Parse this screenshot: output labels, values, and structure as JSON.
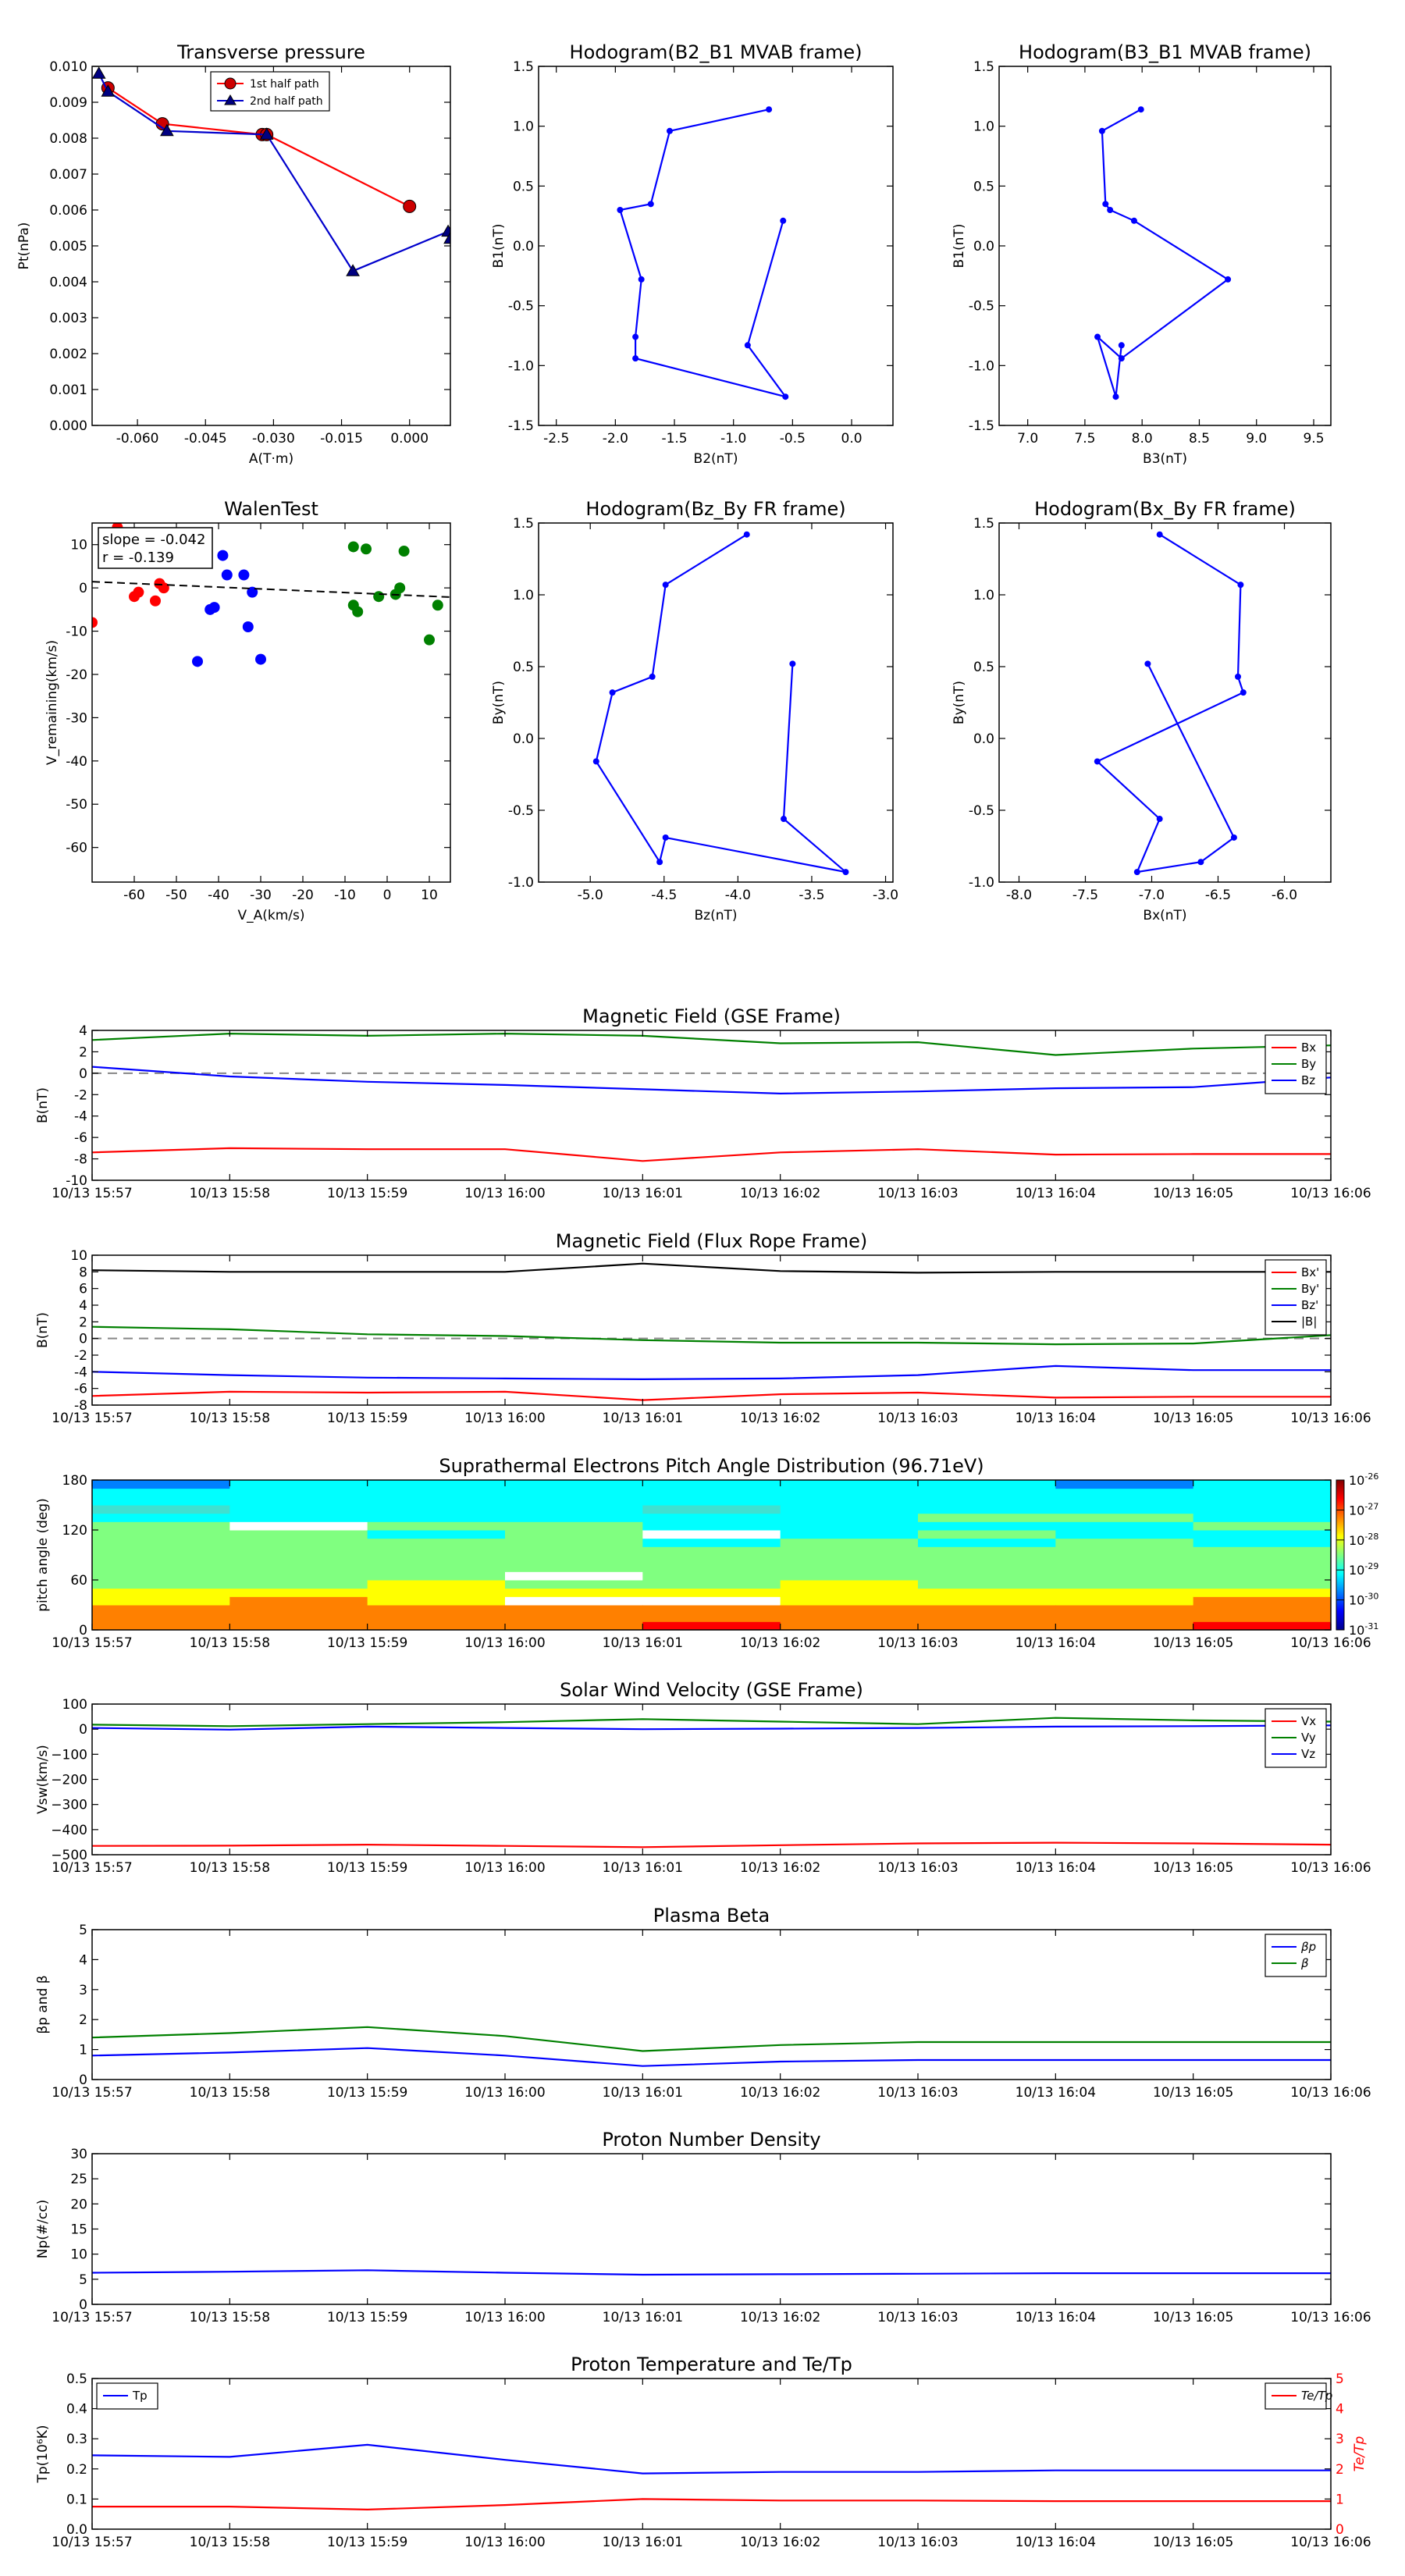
{
  "time_axis": [
    "10/13 15:57",
    "10/13 15:58",
    "10/13 15:59",
    "10/13 16:00",
    "10/13 16:01",
    "10/13 16:02",
    "10/13 16:03",
    "10/13 16:04",
    "10/13 16:05",
    "10/13 16:06"
  ],
  "chart_data": [
    {
      "id": "transverse_pressure",
      "type": "line",
      "title": "Transverse pressure",
      "xlabel": "A(T·m)",
      "ylabel": "Pt(nPa)",
      "xlim": [
        -0.07,
        0.009
      ],
      "ylim": [
        0,
        0.01
      ],
      "xticks": [
        "-0.060",
        "-0.045",
        "-0.030",
        "-0.015",
        "0.000"
      ],
      "xtick_values": [
        -0.06,
        -0.045,
        -0.03,
        -0.015,
        0.0
      ],
      "yticks": [
        "0.000",
        "0.001",
        "0.002",
        "0.003",
        "0.004",
        "0.005",
        "0.006",
        "0.007",
        "0.008",
        "0.009",
        "0.010"
      ],
      "ytick_values": [
        0,
        0.001,
        0.002,
        0.003,
        0.004,
        0.005,
        0.006,
        0.007,
        0.008,
        0.009,
        0.01
      ],
      "legend": {
        "position": "top-center"
      },
      "series": [
        {
          "name": "1st half path",
          "color": "#ff0000",
          "marker": "circle",
          "markerColor": "#cc0000",
          "x": [
            -0.0665,
            -0.0545,
            -0.0325,
            -0.0315,
            0.0
          ],
          "y": [
            0.0094,
            0.0084,
            0.0081,
            0.0081,
            0.0061
          ]
        },
        {
          "name": "2nd half path",
          "color": "#0000cc",
          "marker": "triangle",
          "markerColor": "#000080",
          "x": [
            -0.0685,
            -0.0665,
            -0.0535,
            -0.0315,
            -0.0125,
            0.0085,
            0.009
          ],
          "y": [
            0.0098,
            0.0093,
            0.0082,
            0.0081,
            0.0043,
            0.0054,
            0.0052
          ]
        }
      ]
    },
    {
      "id": "hodo_b2b1",
      "type": "line",
      "title": "Hodogram(B2_B1 MVAB frame)",
      "xlabel": "B2(nT)",
      "ylabel": "B1(nT)",
      "xlim": [
        -2.65,
        0.35
      ],
      "ylim": [
        -1.5,
        1.5
      ],
      "xticks": [
        "-2.5",
        "-2.0",
        "-1.5",
        "-1.0",
        "-0.5",
        "0.0"
      ],
      "xtick_values": [
        -2.5,
        -2.0,
        -1.5,
        -1.0,
        -0.5,
        0.0
      ],
      "yticks": [
        "-1.5",
        "-1.0",
        "-0.5",
        "0.0",
        "0.5",
        "1.0",
        "1.5"
      ],
      "ytick_values": [
        -1.5,
        -1.0,
        -0.5,
        0.0,
        0.5,
        1.0,
        1.5
      ],
      "series": [
        {
          "color": "#0000ff",
          "marker": "dot",
          "x": [
            -0.7,
            -1.54,
            -1.7,
            -1.96,
            -1.78,
            -1.83,
            -1.83,
            -0.56,
            -0.88,
            -0.58
          ],
          "y": [
            1.14,
            0.96,
            0.35,
            0.3,
            -0.28,
            -0.76,
            -0.94,
            -1.26,
            -0.83,
            0.21
          ]
        }
      ]
    },
    {
      "id": "hodo_b3b1",
      "type": "line",
      "title": "Hodogram(B3_B1 MVAB frame)",
      "xlabel": "B3(nT)",
      "ylabel": "B1(nT)",
      "xlim": [
        6.75,
        9.65
      ],
      "ylim": [
        -1.5,
        1.5
      ],
      "xticks": [
        "7.0",
        "7.5",
        "8.0",
        "8.5",
        "9.0",
        "9.5"
      ],
      "xtick_values": [
        7.0,
        7.5,
        8.0,
        8.5,
        9.0,
        9.5
      ],
      "yticks": [
        "-1.5",
        "-1.0",
        "-0.5",
        "0.0",
        "0.5",
        "1.0",
        "1.5"
      ],
      "ytick_values": [
        -1.5,
        -1.0,
        -0.5,
        0.0,
        0.5,
        1.0,
        1.5
      ],
      "series": [
        {
          "color": "#0000ff",
          "marker": "dot",
          "x": [
            7.99,
            7.65,
            7.68,
            7.72,
            7.93,
            8.75,
            7.82,
            7.61,
            7.77,
            7.82
          ],
          "y": [
            1.14,
            0.96,
            0.35,
            0.3,
            0.21,
            -0.28,
            -0.94,
            -0.76,
            -1.26,
            -0.83
          ]
        }
      ]
    },
    {
      "id": "walen",
      "type": "scatter",
      "title": "WalenTest",
      "xlabel": "V_A(km/s)",
      "ylabel": "V_remaining(km/s)",
      "xlim": [
        -70,
        15
      ],
      "ylim": [
        -68,
        15
      ],
      "xticks": [
        "-60",
        "-50",
        "-40",
        "-30",
        "-20",
        "-10",
        "0",
        "10"
      ],
      "xtick_values": [
        -60,
        -50,
        -40,
        -30,
        -20,
        -10,
        0,
        10
      ],
      "yticks": [
        "-60",
        "-50",
        "-40",
        "-30",
        "-20",
        "-10",
        "0",
        "10"
      ],
      "ytick_values": [
        -60,
        -50,
        -40,
        -30,
        -20,
        -10,
        0,
        10
      ],
      "annotation": [
        "slope = -0.042",
        "r = -0.139"
      ],
      "fit_line": {
        "slope": -0.042,
        "intercept": -1.5
      },
      "series": [
        {
          "color": "#ff0000",
          "x": [
            -70,
            -64,
            -60,
            -59,
            -55,
            -54,
            -53
          ],
          "y": [
            -8,
            14,
            -2,
            -1,
            -3,
            1,
            0
          ]
        },
        {
          "color": "#0000ff",
          "x": [
            -45,
            -42,
            -41,
            -39,
            -38,
            -34,
            -33,
            -32,
            -30
          ],
          "y": [
            -17,
            -5,
            -4.5,
            7.5,
            3,
            3,
            -9,
            -1,
            -16.5
          ]
        },
        {
          "color": "#008000",
          "x": [
            -8,
            -8,
            -7,
            -5,
            -2,
            2,
            3,
            4,
            10,
            12
          ],
          "y": [
            9.5,
            -4,
            -5.5,
            9,
            -2,
            -1.5,
            0,
            8.5,
            -12,
            -4
          ]
        }
      ]
    },
    {
      "id": "hodo_bzby",
      "type": "line",
      "title": "Hodogram(Bz_By FR frame)",
      "xlabel": "Bz(nT)",
      "ylabel": "By(nT)",
      "xlim": [
        -5.35,
        -2.95
      ],
      "ylim": [
        -1.0,
        1.5
      ],
      "xticks": [
        "-5.0",
        "-4.5",
        "-4.0",
        "-3.5",
        "-3.0"
      ],
      "xtick_values": [
        -5.0,
        -4.5,
        -4.0,
        -3.5,
        -3.0
      ],
      "yticks": [
        "-1.0",
        "-0.5",
        "0.0",
        "0.5",
        "1.0",
        "1.5"
      ],
      "ytick_values": [
        -1.0,
        -0.5,
        0.0,
        0.5,
        1.0,
        1.5
      ],
      "series": [
        {
          "color": "#0000ff",
          "marker": "dot",
          "x": [
            -3.94,
            -4.49,
            -4.58,
            -4.85,
            -4.96,
            -4.53,
            -4.49,
            -3.27,
            -3.69,
            -3.63
          ],
          "y": [
            1.42,
            1.07,
            0.43,
            0.32,
            -0.16,
            -0.86,
            -0.69,
            -0.93,
            -0.56,
            0.52
          ]
        }
      ]
    },
    {
      "id": "hodo_bxby",
      "type": "line",
      "title": "Hodogram(Bx_By FR frame)",
      "xlabel": "Bx(nT)",
      "ylabel": "By(nT)",
      "xlim": [
        -8.15,
        -5.65
      ],
      "ylim": [
        -1.0,
        1.5
      ],
      "xticks": [
        "-8.0",
        "-7.5",
        "-7.0",
        "-6.5",
        "-6.0"
      ],
      "xtick_values": [
        -8.0,
        -7.5,
        -7.0,
        -6.5,
        -6.0
      ],
      "yticks": [
        "-1.0",
        "-0.5",
        "0.0",
        "0.5",
        "1.0",
        "1.5"
      ],
      "ytick_values": [
        -1.0,
        -0.5,
        0.0,
        0.5,
        1.0,
        1.5
      ],
      "series": [
        {
          "color": "#0000ff",
          "marker": "dot",
          "x": [
            -6.94,
            -6.33,
            -6.35,
            -6.31,
            -7.41,
            -6.94,
            -7.11,
            -6.63,
            -6.38,
            -7.03
          ],
          "y": [
            1.42,
            1.07,
            0.43,
            0.32,
            -0.16,
            -0.56,
            -0.93,
            -0.86,
            -0.69,
            0.52
          ]
        }
      ]
    },
    {
      "id": "mag_gse",
      "type": "line",
      "title": "Magnetic Field (GSE Frame)",
      "ylabel": "B(nT)",
      "ylim": [
        -10,
        4
      ],
      "yticks": [
        "-10",
        "-8",
        "-6",
        "-4",
        "-2",
        "0",
        "2",
        "4"
      ],
      "ytick_values": [
        -10,
        -8,
        -6,
        -4,
        -2,
        0,
        2,
        4
      ],
      "zero_line": true,
      "legend": {
        "position": "top-right"
      },
      "series": [
        {
          "name": "Bx",
          "color": "#ff0000",
          "y": [
            -7.4,
            -7.0,
            -7.1,
            -7.1,
            -8.2,
            -7.4,
            -7.1,
            -7.6,
            -7.55,
            -7.55
          ]
        },
        {
          "name": "By",
          "color": "#008000",
          "y": [
            3.1,
            3.7,
            3.5,
            3.7,
            3.5,
            2.8,
            2.9,
            1.7,
            2.3,
            2.6
          ]
        },
        {
          "name": "Bz",
          "color": "#0000ff",
          "y": [
            0.6,
            -0.3,
            -0.8,
            -1.1,
            -1.5,
            -1.9,
            -1.7,
            -1.4,
            -1.3,
            -0.4
          ]
        }
      ]
    },
    {
      "id": "mag_fr",
      "type": "line",
      "title": "Magnetic Field (Flux Rope Frame)",
      "ylabel": "B(nT)",
      "ylim": [
        -8,
        10
      ],
      "yticks": [
        "-8",
        "-6",
        "-4",
        "-2",
        "0",
        "2",
        "4",
        "6",
        "8",
        "10"
      ],
      "ytick_values": [
        -8,
        -6,
        -4,
        -2,
        0,
        2,
        4,
        6,
        8,
        10
      ],
      "zero_line": true,
      "legend": {
        "position": "top-right"
      },
      "series": [
        {
          "name": "Bx'",
          "color": "#ff0000",
          "y": [
            -6.9,
            -6.4,
            -6.5,
            -6.4,
            -7.4,
            -6.7,
            -6.5,
            -7.1,
            -7.0,
            -7.0
          ]
        },
        {
          "name": "By'",
          "color": "#008000",
          "y": [
            1.4,
            1.1,
            0.5,
            0.3,
            -0.2,
            -0.5,
            -0.5,
            -0.7,
            -0.6,
            0.4
          ]
        },
        {
          "name": "Bz'",
          "color": "#0000ff",
          "y": [
            -4.0,
            -4.4,
            -4.7,
            -4.8,
            -4.9,
            -4.8,
            -4.4,
            -3.3,
            -3.8,
            -3.8
          ]
        },
        {
          "name": "|B|",
          "color": "#000000",
          "y": [
            8.2,
            8.0,
            8.0,
            8.0,
            9.0,
            8.1,
            7.9,
            8.0,
            8.0,
            8.0
          ]
        }
      ]
    },
    {
      "id": "pad",
      "type": "heatmap",
      "title": "Suprathermal Electrons Pitch Angle Distribution (96.71eV)",
      "ylabel": "pitch angle (deg)",
      "ylim": [
        0,
        180
      ],
      "yticks": [
        "0",
        "60",
        "120",
        "180"
      ],
      "ytick_values": [
        0,
        60,
        120,
        180
      ],
      "colorbar": {
        "labels": [
          "10",
          "10",
          "10",
          "10",
          "10",
          "10"
        ],
        "exponents": [
          "-26",
          "-27",
          "-28",
          "-29",
          "-30",
          "-31"
        ]
      }
    },
    {
      "id": "vsw",
      "type": "line",
      "title": "Solar Wind Velocity (GSE Frame)",
      "ylabel": "Vsw(km/s)",
      "ylim": [
        -500,
        100
      ],
      "yticks": [
        "−500",
        "−400",
        "−300",
        "−200",
        "−100",
        "0",
        "100"
      ],
      "ytick_values": [
        -500,
        -400,
        -300,
        -200,
        -100,
        0,
        100
      ],
      "legend": {
        "position": "top-right"
      },
      "series": [
        {
          "name": "Vx",
          "color": "#ff0000",
          "y": [
            -465,
            -464,
            -460,
            -465,
            -470,
            -462,
            -455,
            -452,
            -455,
            -460
          ]
        },
        {
          "name": "Vy",
          "color": "#008000",
          "y": [
            18,
            12,
            20,
            28,
            40,
            30,
            20,
            45,
            35,
            30
          ]
        },
        {
          "name": "Vz",
          "color": "#0000ff",
          "y": [
            5,
            -2,
            10,
            5,
            0,
            2,
            5,
            10,
            12,
            15
          ]
        }
      ]
    },
    {
      "id": "beta",
      "type": "line",
      "title": "Plasma Beta",
      "ylabel": "βp and β",
      "ylim": [
        0,
        5
      ],
      "yticks": [
        "0",
        "1",
        "2",
        "3",
        "4",
        "5"
      ],
      "ytick_values": [
        0,
        1,
        2,
        3,
        4,
        5
      ],
      "legend": {
        "position": "top-right"
      },
      "series": [
        {
          "name": "βp",
          "color": "#0000ff",
          "y": [
            0.8,
            0.9,
            1.05,
            0.8,
            0.45,
            0.6,
            0.65,
            0.65,
            0.65,
            0.65
          ]
        },
        {
          "name": "β",
          "color": "#008000",
          "y": [
            1.4,
            1.55,
            1.75,
            1.45,
            0.95,
            1.15,
            1.25,
            1.25,
            1.25,
            1.25
          ]
        }
      ]
    },
    {
      "id": "density",
      "type": "line",
      "title": "Proton Number Density",
      "ylabel": "Np(#/cc)",
      "ylim": [
        0,
        30
      ],
      "yticks": [
        "0",
        "5",
        "10",
        "15",
        "20",
        "25",
        "30"
      ],
      "ytick_values": [
        0,
        5,
        10,
        15,
        20,
        25,
        30
      ],
      "series": [
        {
          "color": "#0000ff",
          "y": [
            6.3,
            6.5,
            6.8,
            6.3,
            5.9,
            6.0,
            6.1,
            6.2,
            6.2,
            6.2
          ]
        }
      ]
    },
    {
      "id": "temp",
      "type": "line",
      "title": "Proton Temperature and Te/Tp",
      "ylabel": "Tp(10⁶K)",
      "ylabel_right": "Te/Tp",
      "ylim": [
        0,
        0.5
      ],
      "yticks": [
        "0.0",
        "0.1",
        "0.2",
        "0.3",
        "0.4",
        "0.5"
      ],
      "ytick_values": [
        0,
        0.1,
        0.2,
        0.3,
        0.4,
        0.5
      ],
      "ylim_right": [
        0,
        5
      ],
      "yticks_right": [
        "0",
        "1",
        "2",
        "3",
        "4",
        "5"
      ],
      "ytick_values_right": [
        0,
        1,
        2,
        3,
        4,
        5
      ],
      "legend": {
        "position": "top-left",
        "right_position": "top-right"
      },
      "series": [
        {
          "name": "Tp",
          "color": "#0000ff",
          "axis": "left",
          "y": [
            0.245,
            0.24,
            0.28,
            0.23,
            0.185,
            0.19,
            0.19,
            0.195,
            0.195,
            0.195
          ]
        },
        {
          "name": "Te/Tp",
          "color": "#ff0000",
          "axis": "right",
          "y": [
            0.75,
            0.75,
            0.65,
            0.8,
            1.0,
            0.95,
            0.95,
            0.93,
            0.93,
            0.93
          ]
        }
      ]
    }
  ]
}
